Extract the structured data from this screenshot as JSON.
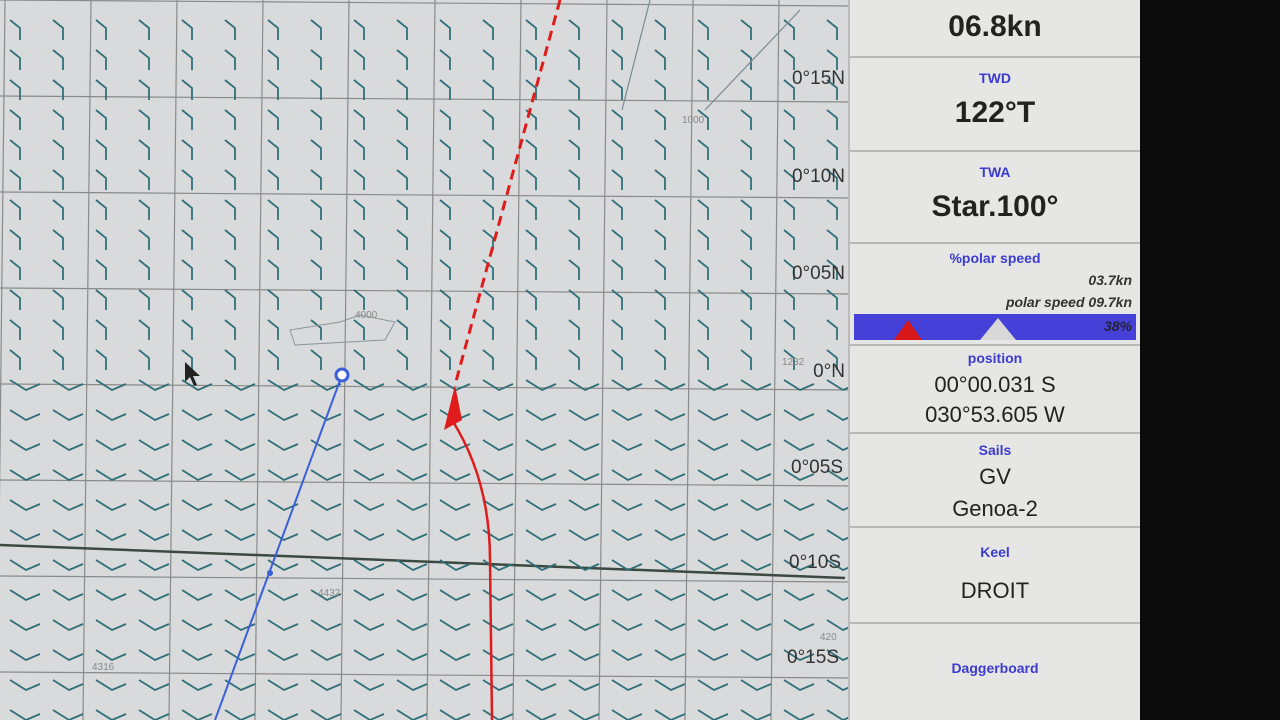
{
  "map": {
    "latitude_labels": [
      "0°15N",
      "0°10N",
      "0°05N",
      "0°N",
      "0°05S",
      "0°10S",
      "0°15S"
    ],
    "depth_labels": [
      "1000",
      "4000",
      "4432",
      "1232",
      "420",
      "4316"
    ],
    "icons": [
      "wind-barb-icon",
      "boat-icon",
      "cursor-arrow-icon",
      "waypoint-icon"
    ],
    "colors": {
      "route": "#e01b1b",
      "track": "#3a5fd8",
      "barb": "#2f6f78",
      "grid": "#8a8a8a"
    }
  },
  "panel": {
    "boat_speed": "06.8kn",
    "twd_label": "TWD",
    "twd_value": "122°T",
    "twa_label": "TWA",
    "twa_value": "Star.100°",
    "polar_label": "%polar speed",
    "current_speed": "03.7kn",
    "polar_speed": "polar speed 09.7kn",
    "polar_percent_text": "38%",
    "polar_percent": 38,
    "position_label": "position",
    "lat": "00°00.031 S",
    "lon": "030°53.605 W",
    "sails_label": "Sails",
    "sail1": "GV",
    "sail2": "Genoa-2",
    "keel_label": "Keel",
    "keel_value": "DROIT",
    "daggerboard_label": "Daggerboard"
  }
}
